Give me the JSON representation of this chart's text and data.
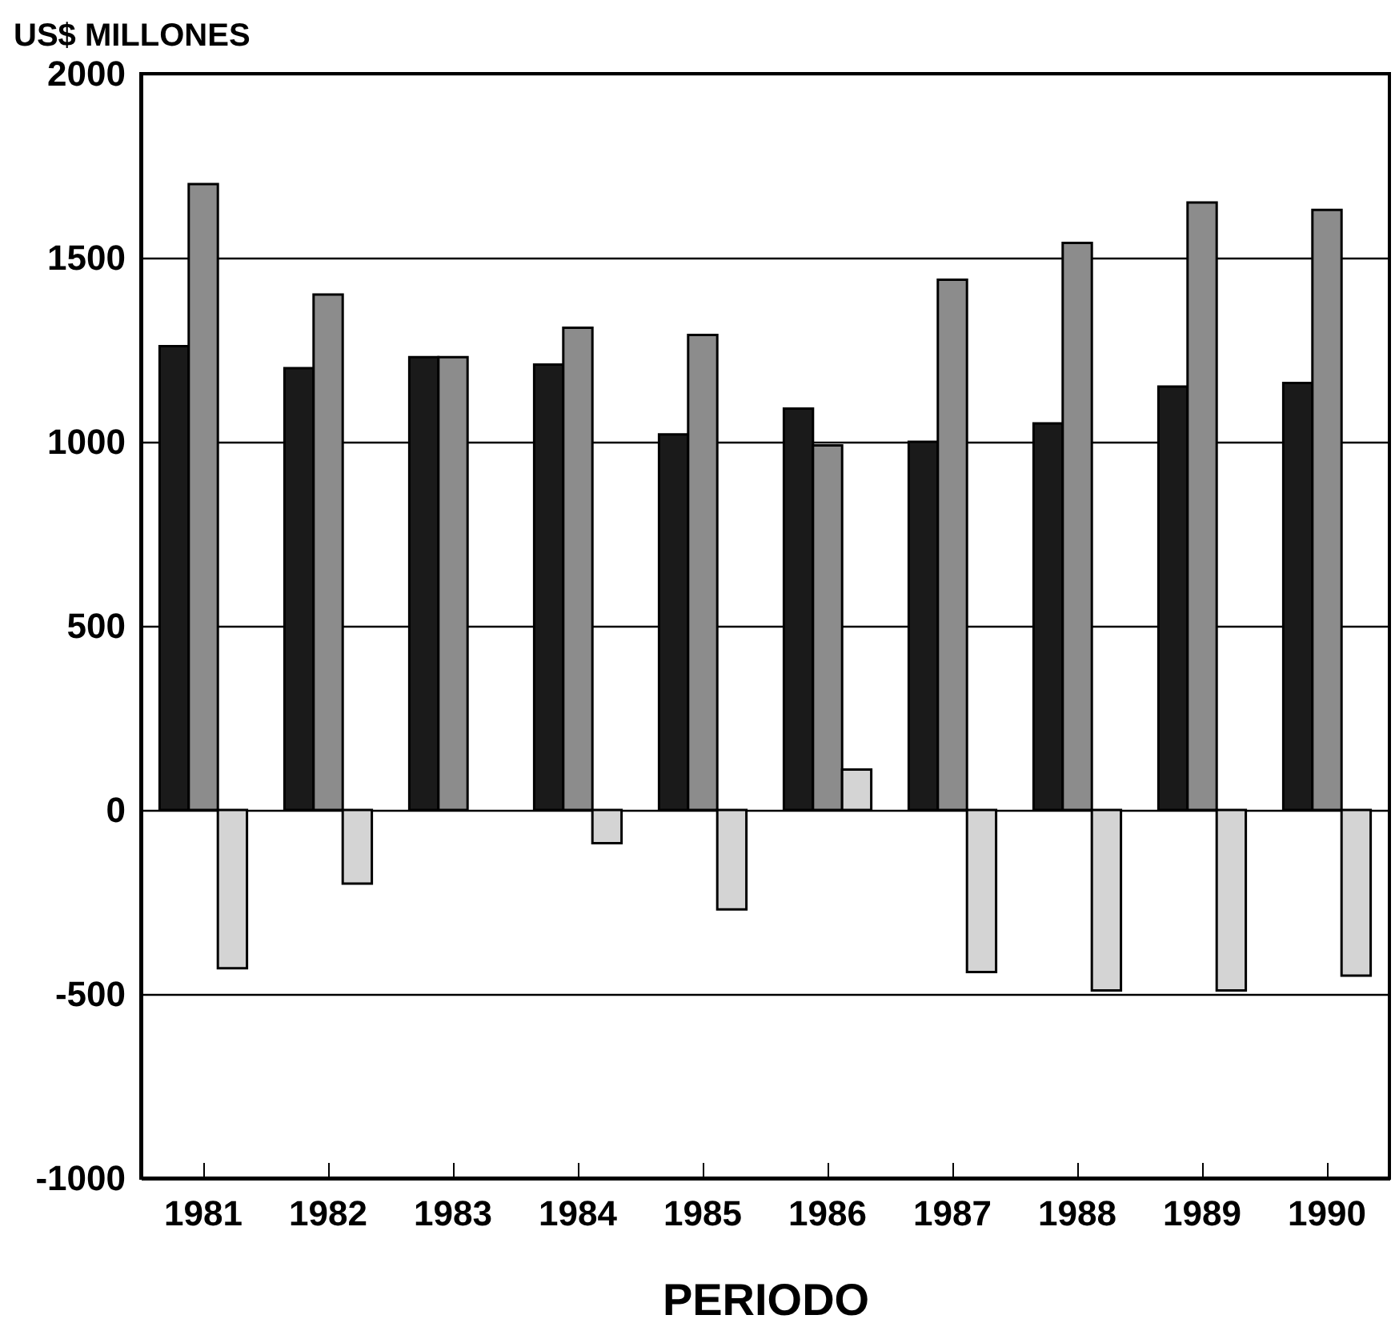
{
  "chart_data": {
    "type": "bar",
    "xlabel": "PERIODO",
    "ylabel": "US$ MILLONES",
    "categories": [
      "1981",
      "1982",
      "1983",
      "1984",
      "1985",
      "1986",
      "1987",
      "1988",
      "1989",
      "1990"
    ],
    "series": [
      {
        "color": "#1a1a1a",
        "values": [
          1260,
          1200,
          1230,
          1210,
          1020,
          1090,
          1000,
          1050,
          1150,
          1160
        ]
      },
      {
        "color": "#8c8c8c",
        "values": [
          1700,
          1400,
          1230,
          1310,
          1290,
          990,
          1440,
          1540,
          1650,
          1630
        ]
      },
      {
        "color": "#d4d4d4",
        "values": [
          -430,
          -200,
          null,
          -90,
          -270,
          110,
          -440,
          -490,
          -490,
          -450
        ]
      }
    ],
    "ylim": [
      -1000,
      2000
    ],
    "yticks": [
      -1000,
      -500,
      0,
      500,
      1000,
      1500,
      2000
    ],
    "grid": "y"
  }
}
